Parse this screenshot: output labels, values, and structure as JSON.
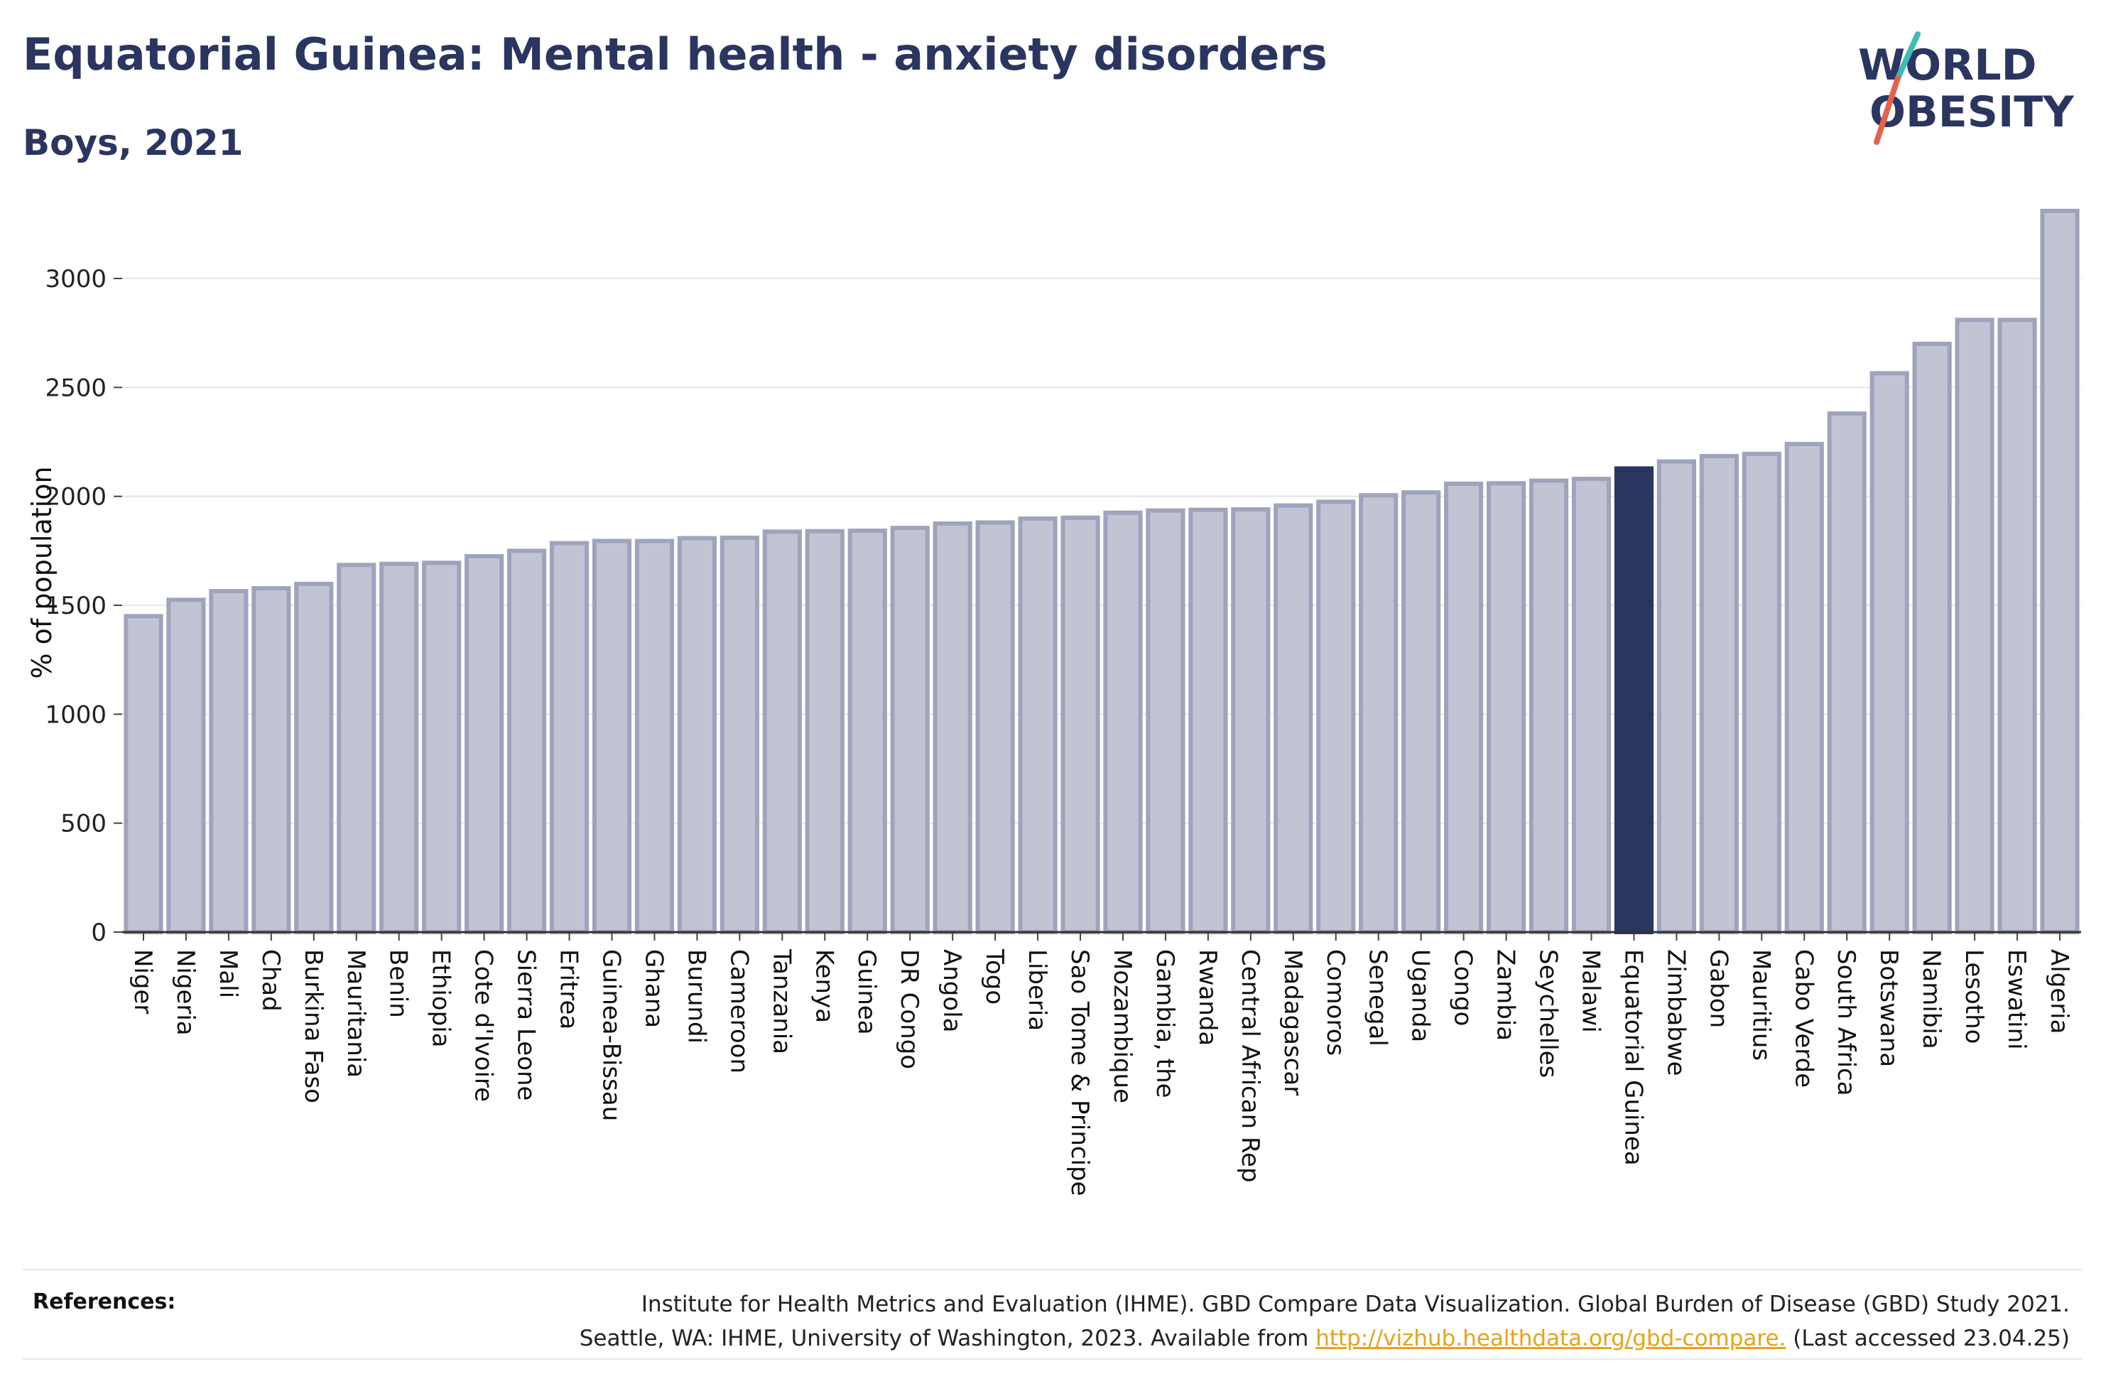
{
  "header": {
    "title": "Equatorial Guinea: Mental health - anxiety disorders",
    "subtitle": "Boys, 2021"
  },
  "logo": {
    "line1": "WORLD",
    "line2": "OBESITY",
    "text_color": "#2a3560",
    "slash_colors": [
      "#3cbcb4",
      "#e8604c"
    ]
  },
  "chart_data": {
    "type": "bar",
    "ylabel": "% of population",
    "ylim": [
      0,
      3300
    ],
    "yticks": [
      0,
      500,
      1000,
      1500,
      2000,
      2500,
      3000
    ],
    "grid": true,
    "highlight": "Equatorial Guinea",
    "colors": {
      "bar": "#c0c4d3",
      "bar_edge": "#9fa4bc",
      "highlight": "#2a3560"
    },
    "categories": [
      "Niger",
      "Nigeria",
      "Mali",
      "Chad",
      "Burkina Faso",
      "Mauritania",
      "Benin",
      "Ethiopia",
      "Cote d'Ivoire",
      "Sierra Leone",
      "Eritrea",
      "Guinea-Bissau",
      "Ghana",
      "Burundi",
      "Cameroon",
      "Tanzania",
      "Kenya",
      "Guinea",
      "DR Congo",
      "Angola",
      "Togo",
      "Liberia",
      "Sao Tome & Principe",
      "Mozambique",
      "Gambia, the",
      "Rwanda",
      "Central African Rep",
      "Madagascar",
      "Comoros",
      "Senegal",
      "Uganda",
      "Congo",
      "Zambia",
      "Seychelles",
      "Malawi",
      "Equatorial Guinea",
      "Zimbabwe",
      "Gabon",
      "Mauritius",
      "Cabo Verde",
      "South Africa",
      "Botswana",
      "Namibia",
      "Lesotho",
      "Eswatini",
      "Algeria"
    ],
    "values": [
      1450,
      1525,
      1565,
      1578,
      1598,
      1685,
      1690,
      1695,
      1725,
      1750,
      1785,
      1795,
      1795,
      1808,
      1810,
      1838,
      1840,
      1842,
      1855,
      1875,
      1880,
      1898,
      1902,
      1925,
      1935,
      1938,
      1940,
      1958,
      1975,
      2005,
      2018,
      2058,
      2060,
      2072,
      2080,
      2128,
      2160,
      2185,
      2195,
      2240,
      2380,
      2565,
      2700,
      2810,
      2810,
      3310
    ]
  },
  "references": {
    "label": "References:",
    "line1": "Institute for Health Metrics and Evaluation (IHME). GBD Compare Data Visualization. Global Burden of Disease (GBD) Study 2021.",
    "line2_prefix": "Seattle, WA: IHME, University of Washington, 2023. Available from ",
    "link": "http://vizhub.healthdata.org/gbd-compare.",
    "line2_suffix": " (Last accessed 23.04.25)"
  }
}
